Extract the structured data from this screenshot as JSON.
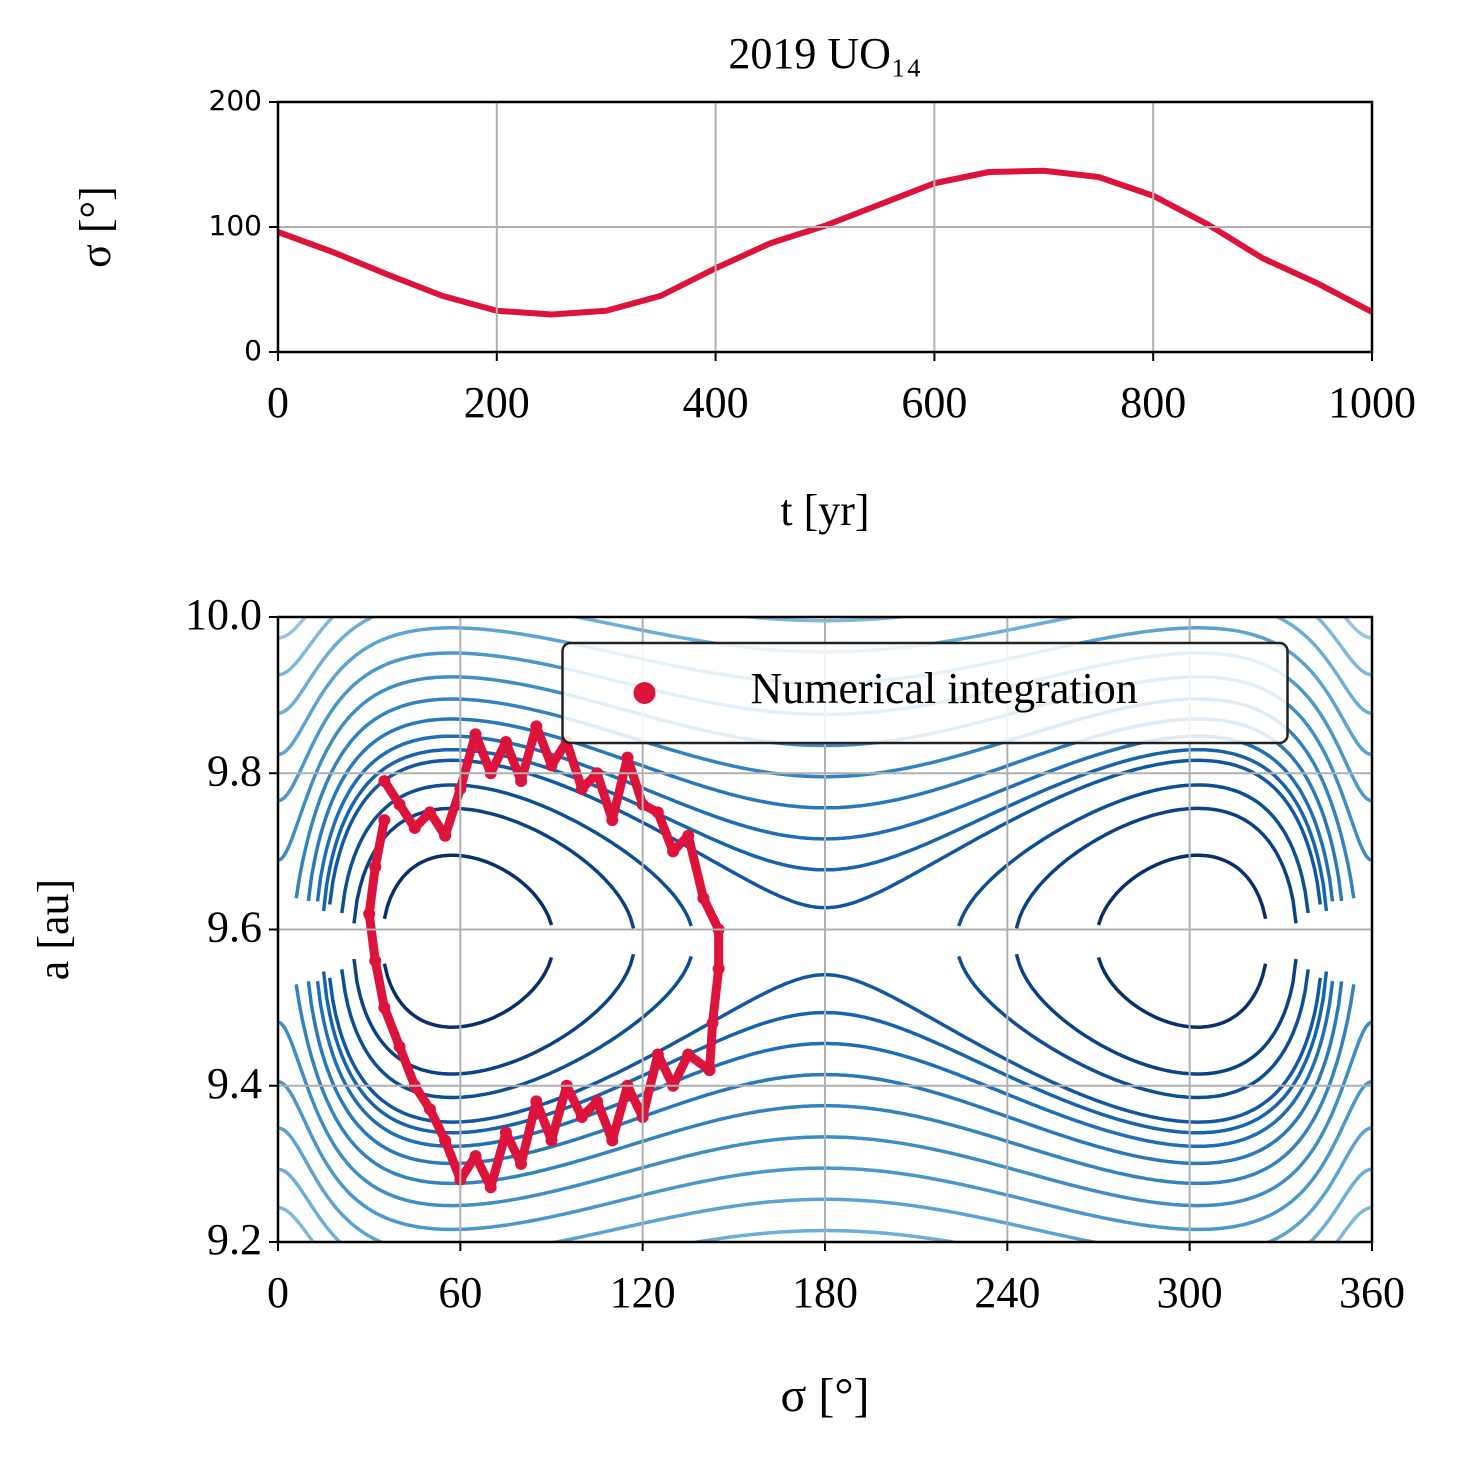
{
  "chart_data": [
    {
      "type": "line",
      "title": "2019 UO₁₄",
      "x_label": "t [yr]",
      "y_label": "σ [°]",
      "x": [
        0,
        50,
        100,
        150,
        200,
        250,
        300,
        350,
        400,
        450,
        500,
        550,
        600,
        650,
        700,
        750,
        800,
        850,
        900,
        950,
        1000
      ],
      "series": [
        {
          "name": "σ",
          "color": "#dc143c",
          "values": [
            96,
            80,
            62,
            45,
            33,
            30,
            33,
            45,
            67,
            87,
            101,
            118,
            135,
            144,
            145,
            140,
            125,
            102,
            75,
            55,
            32
          ]
        }
      ],
      "xlim": [
        0,
        1000
      ],
      "xticks": [
        0,
        200,
        400,
        600,
        800,
        1000
      ],
      "ylim": [
        0,
        200
      ],
      "yticks": [
        0,
        100,
        200
      ],
      "grid": true
    },
    {
      "type": "scatter",
      "x_label": "σ [°]",
      "y_label": "a [au]",
      "legend": "upper center",
      "series": [
        {
          "name": "Numerical integration",
          "color": "#dc143c",
          "x": [
            35,
            40,
            45,
            50,
            55,
            60,
            65,
            70,
            75,
            80,
            85,
            90,
            95,
            100,
            105,
            110,
            115,
            120,
            125,
            130,
            135,
            140,
            145,
            145,
            143,
            142,
            135,
            130,
            125,
            120,
            115,
            110,
            105,
            100,
            95,
            90,
            85,
            80,
            75,
            70,
            65,
            60,
            55,
            50,
            45,
            40,
            35,
            32,
            30,
            32,
            35
          ],
          "values": [
            9.79,
            9.76,
            9.73,
            9.75,
            9.72,
            9.78,
            9.85,
            9.8,
            9.84,
            9.79,
            9.86,
            9.81,
            9.84,
            9.78,
            9.8,
            9.74,
            9.82,
            9.76,
            9.75,
            9.7,
            9.72,
            9.64,
            9.6,
            9.55,
            9.48,
            9.42,
            9.44,
            9.4,
            9.44,
            9.36,
            9.4,
            9.33,
            9.38,
            9.36,
            9.4,
            9.33,
            9.38,
            9.3,
            9.34,
            9.27,
            9.31,
            9.28,
            9.33,
            9.37,
            9.4,
            9.45,
            9.5,
            9.56,
            9.62,
            9.68,
            9.74
          ]
        }
      ],
      "xlim": [
        0,
        360
      ],
      "xticks": [
        0,
        60,
        120,
        180,
        240,
        300,
        360
      ],
      "ylim": [
        9.2,
        10
      ],
      "yticks": [
        9.2,
        9.4,
        9.6,
        9.8,
        {
          "value": 10,
          "label": "10.0"
        }
      ],
      "grid": true
    }
  ]
}
